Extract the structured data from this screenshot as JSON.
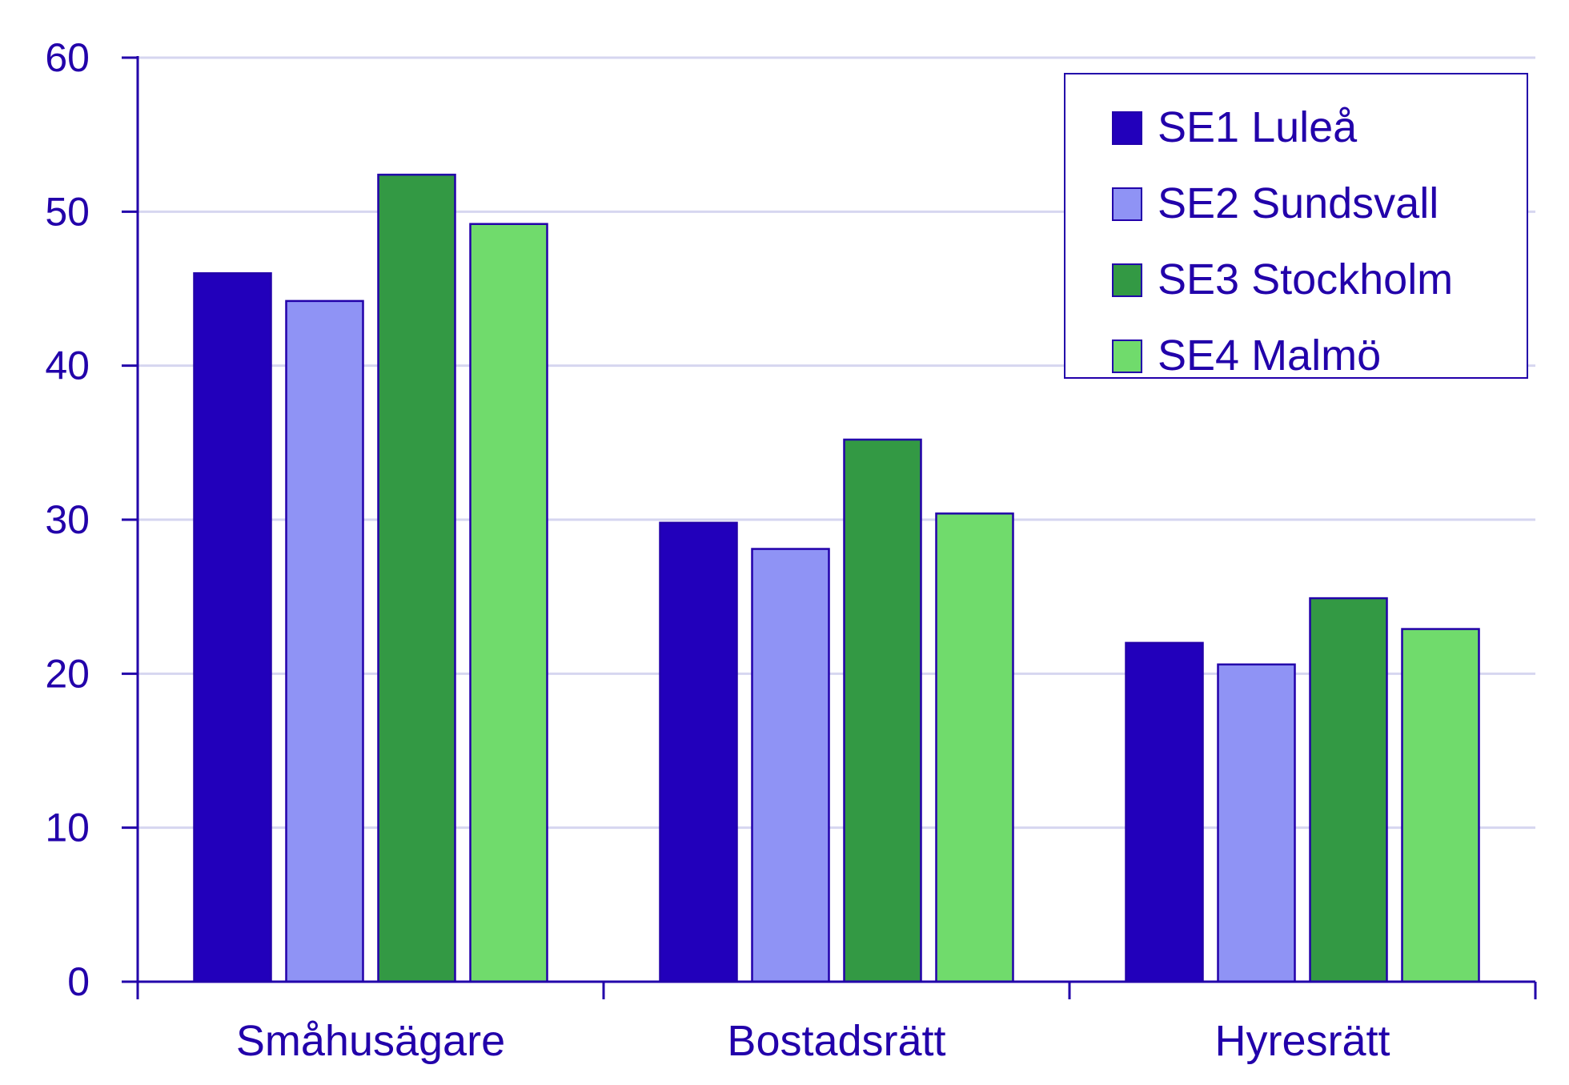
{
  "chart_data": {
    "type": "bar",
    "categories": [
      "Småhusägare",
      "Bostadsrätt",
      "Hyresrätt"
    ],
    "series": [
      {
        "name": "SE1 Luleå",
        "values": [
          46.0,
          29.8,
          22.0
        ],
        "color": "#2200bb"
      },
      {
        "name": "SE2 Sundsvall",
        "values": [
          44.2,
          28.1,
          20.6
        ],
        "color": "#8f93f5"
      },
      {
        "name": "SE3 Stockholm",
        "values": [
          52.4,
          35.2,
          24.9
        ],
        "color": "#339944"
      },
      {
        "name": "SE4 Malmö",
        "values": [
          49.2,
          30.4,
          22.9
        ],
        "color": "#70db6c"
      }
    ],
    "y_ticks": [
      0,
      10,
      20,
      30,
      40,
      50,
      60
    ],
    "ylim": [
      0,
      60
    ],
    "grid": true,
    "legend_position": "top-right",
    "title": "",
    "xlabel": "",
    "ylabel": ""
  },
  "colors": {
    "axis": "#2200aa",
    "text": "#2200aa",
    "grid": "#d6d6f0",
    "bar_outline": "#2200aa"
  }
}
